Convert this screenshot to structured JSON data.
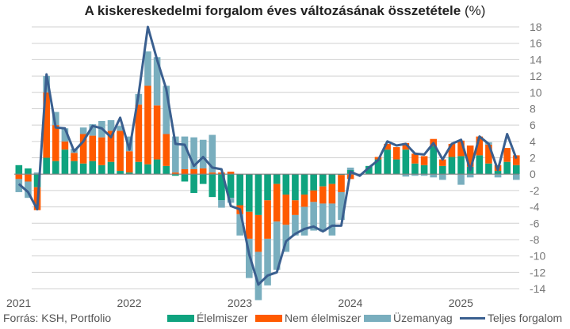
{
  "title": {
    "main": "A kiskereskedelmi forgalom éves változásának összetétele",
    "unit": "(%)"
  },
  "source": "Forrás: KSH, Portfolio",
  "colors": {
    "food": "#0fa37f",
    "nonfood": "#ff5a00",
    "fuel": "#79aebe",
    "total": "#3a5f8f",
    "grid": "#d0d0d0",
    "zero": "#808080"
  },
  "chart_data": {
    "type": "bar",
    "stacked": true,
    "title": "A kiskereskedelmi forgalom éves változásának összetétele (%)",
    "xlabel": "",
    "ylabel": "",
    "ylim": [
      -14,
      18
    ],
    "yticks": [
      "18",
      "16",
      "14",
      "12",
      "10",
      "8",
      "6",
      "4",
      "2",
      "0",
      "-2",
      "-4",
      "-6",
      "-8",
      "-10",
      "-12",
      "-14"
    ],
    "ytick_values": [
      18,
      16,
      14,
      12,
      10,
      8,
      6,
      4,
      2,
      0,
      -2,
      -4,
      -6,
      -8,
      -10,
      -12,
      -14
    ],
    "xtick_labels": [
      "2021",
      "2022",
      "2023",
      "2024",
      "2025"
    ],
    "xtick_index": [
      0,
      12,
      24,
      36,
      48
    ],
    "grid": true,
    "legend_position": "bottom",
    "series": [
      {
        "name": "Élelmiszer",
        "kind": "bar",
        "values": [
          1.1,
          0.7,
          -1.6,
          2.0,
          1.6,
          3.0,
          1.6,
          1.3,
          1.6,
          1.1,
          1.5,
          0.4,
          0.2,
          1.5,
          1.2,
          1.8,
          1.0,
          -0.2,
          -0.9,
          -2.3,
          -1.2,
          -2.8,
          -3.2,
          -2.9,
          -3.8,
          -4.6,
          -5.0,
          -3.2,
          -1.2,
          -2.5,
          -3.2,
          -2.5,
          -2.0,
          -1.5,
          -1.2,
          -0.1,
          0.5,
          0.0,
          1.0,
          1.8,
          3.0,
          1.8,
          3.0,
          1.3,
          1.1,
          3.4,
          1.0,
          2.1,
          2.2,
          0.9,
          2.3,
          1.3,
          0.4,
          1.5,
          1.1
        ]
      },
      {
        "name": "Nem élelmiszer",
        "kind": "bar",
        "values": [
          -0.6,
          -0.9,
          -2.8,
          8.0,
          4.4,
          1.0,
          1.0,
          3.6,
          3.1,
          3.4,
          3.8,
          4.9,
          2.6,
          7.0,
          9.6,
          6.6,
          3.9,
          0.2,
          0.6,
          0.6,
          0.7,
          0.2,
          0.2,
          0.3,
          -1.1,
          -3.3,
          -4.5,
          -4.7,
          -4.6,
          -3.7,
          -1.8,
          -1.5,
          -1.4,
          -2.1,
          -2.4,
          -2.1,
          -0.6,
          0.0,
          0.0,
          0.3,
          0.7,
          1.5,
          0.8,
          1.2,
          1.1,
          0.9,
          0.8,
          1.6,
          1.9,
          2.6,
          2.3,
          2.3,
          0.7,
          1.7,
          1.2
        ]
      },
      {
        "name": "Üzemanyag",
        "kind": "bar",
        "values": [
          -1.6,
          -2.0,
          0.2,
          2.0,
          1.6,
          1.6,
          0.5,
          0.8,
          1.4,
          2.0,
          1.3,
          0.6,
          1.8,
          1.3,
          4.2,
          5.9,
          5.9,
          4.4,
          4.0,
          3.9,
          3.5,
          4.6,
          -0.9,
          -0.6,
          -2.6,
          -4.8,
          -5.9,
          -5.7,
          -5.9,
          -3.3,
          -2.5,
          -3.5,
          -3.5,
          -3.4,
          -3.9,
          -3.4,
          0.3,
          0.0,
          0.0,
          0.0,
          0.0,
          0.0,
          -0.3,
          -0.2,
          -0.2,
          -0.4,
          -0.7,
          0.0,
          -1.3,
          -0.4,
          0.0,
          0.3,
          -0.4,
          0.0,
          -0.7
        ]
      },
      {
        "name": "Teljes forgalom",
        "kind": "line",
        "values": [
          -1.2,
          -2.2,
          -4.3,
          12.2,
          5.7,
          5.6,
          2.8,
          4.0,
          5.9,
          5.6,
          4.5,
          6.9,
          3.0,
          9.8,
          18.0,
          14.0,
          10.4,
          3.7,
          3.6,
          1.0,
          2.1,
          0.8,
          0.6,
          -3.9,
          -4.3,
          -9.8,
          -13.5,
          -12.4,
          -12.0,
          -8.2,
          -7.3,
          -6.7,
          -6.4,
          -7.0,
          -6.3,
          -6.3,
          0.3,
          -0.2,
          0.8,
          1.7,
          4.0,
          3.5,
          3.7,
          2.5,
          2.4,
          3.8,
          1.8,
          3.7,
          4.2,
          0.5,
          4.6,
          3.7,
          0.5,
          4.9,
          1.9
        ]
      }
    ],
    "legend": [
      "Élelmiszer",
      "Nem élelmiszer",
      "Üzemanyag",
      "Teljes forgalom"
    ]
  }
}
